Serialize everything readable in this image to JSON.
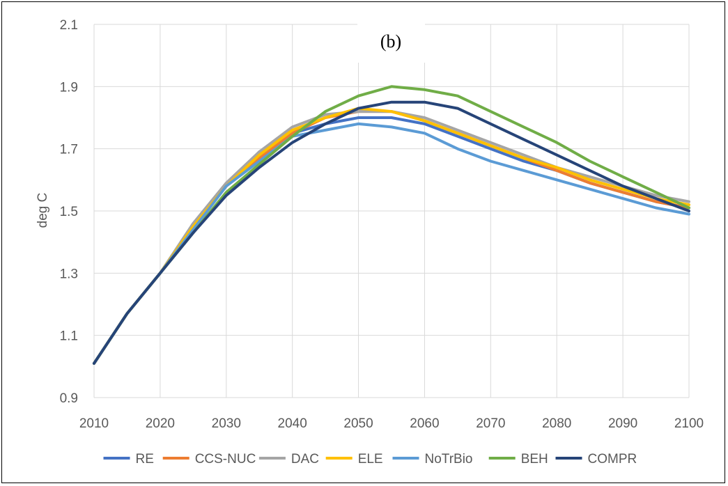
{
  "chart_data": {
    "type": "line",
    "title": "(b)",
    "xlabel": "",
    "ylabel": "deg C",
    "x": [
      2010,
      2015,
      2020,
      2025,
      2030,
      2035,
      2040,
      2045,
      2050,
      2055,
      2060,
      2065,
      2070,
      2075,
      2080,
      2085,
      2090,
      2095,
      2100
    ],
    "xticks": [
      "2010",
      "2020",
      "2030",
      "2040",
      "2050",
      "2060",
      "2070",
      "2080",
      "2090",
      "2100"
    ],
    "yticks": [
      "0.9",
      "1.1",
      "1.3",
      "1.5",
      "1.7",
      "1.9",
      "2.1"
    ],
    "xlim": [
      2010,
      2100
    ],
    "ylim": [
      0.9,
      2.1
    ],
    "grid": "vertical and horizontal",
    "legend_position": "bottom",
    "series": [
      {
        "name": "RE",
        "color": "#4472C4",
        "values": [
          1.01,
          1.17,
          1.3,
          1.45,
          1.58,
          1.69,
          1.75,
          1.78,
          1.8,
          1.8,
          1.78,
          1.74,
          1.7,
          1.66,
          1.63,
          1.59,
          1.56,
          1.53,
          1.51
        ]
      },
      {
        "name": "CCS-NUC",
        "color": "#ED7D31",
        "values": [
          1.01,
          1.17,
          1.3,
          1.45,
          1.58,
          1.67,
          1.75,
          1.8,
          1.82,
          1.82,
          1.79,
          1.75,
          1.71,
          1.67,
          1.63,
          1.59,
          1.56,
          1.53,
          1.51
        ]
      },
      {
        "name": "DAC",
        "color": "#A5A5A5",
        "values": [
          1.01,
          1.17,
          1.3,
          1.46,
          1.59,
          1.69,
          1.77,
          1.81,
          1.82,
          1.82,
          1.8,
          1.76,
          1.72,
          1.68,
          1.64,
          1.61,
          1.58,
          1.55,
          1.53
        ]
      },
      {
        "name": "ELE",
        "color": "#FFC000",
        "values": [
          1.01,
          1.17,
          1.3,
          1.45,
          1.58,
          1.68,
          1.76,
          1.8,
          1.83,
          1.82,
          1.79,
          1.75,
          1.71,
          1.67,
          1.64,
          1.6,
          1.57,
          1.54,
          1.52
        ]
      },
      {
        "name": "NoTrBio",
        "color": "#5B9BD5",
        "values": [
          1.01,
          1.17,
          1.3,
          1.44,
          1.58,
          1.66,
          1.74,
          1.76,
          1.78,
          1.77,
          1.75,
          1.7,
          1.66,
          1.63,
          1.6,
          1.57,
          1.54,
          1.51,
          1.49
        ]
      },
      {
        "name": "BEH",
        "color": "#70AD47",
        "values": [
          1.01,
          1.17,
          1.3,
          1.43,
          1.56,
          1.65,
          1.74,
          1.82,
          1.87,
          1.9,
          1.89,
          1.87,
          1.82,
          1.77,
          1.72,
          1.66,
          1.61,
          1.56,
          1.51
        ]
      },
      {
        "name": "COMPR",
        "color": "#264478",
        "values": [
          1.01,
          1.17,
          1.3,
          1.43,
          1.55,
          1.64,
          1.72,
          1.78,
          1.83,
          1.85,
          1.85,
          1.83,
          1.78,
          1.73,
          1.68,
          1.63,
          1.58,
          1.54,
          1.5
        ]
      }
    ]
  }
}
